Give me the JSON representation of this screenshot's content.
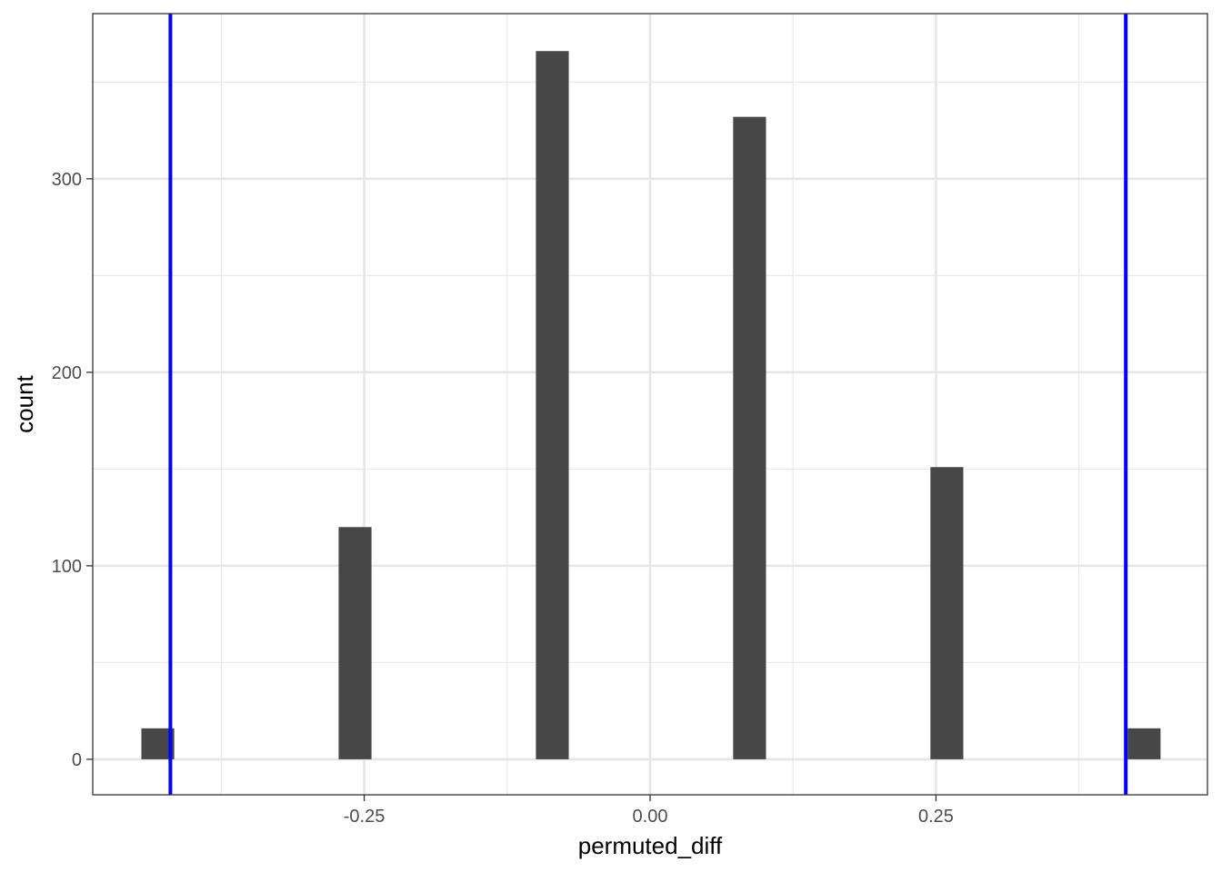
{
  "chart_data": {
    "type": "bar",
    "subtype": "histogram",
    "xlabel": "permuted_diff",
    "ylabel": "count",
    "xlim": [
      -0.4874,
      0.4874
    ],
    "ylim": [
      -18.35,
      385.35
    ],
    "x_ticks": [
      {
        "value": -0.25,
        "label": "-0.25"
      },
      {
        "value": 0.0,
        "label": "0.00"
      },
      {
        "value": 0.25,
        "label": "0.25"
      }
    ],
    "x_minor": [
      -0.375,
      -0.125,
      0.125,
      0.375
    ],
    "y_ticks": [
      {
        "value": 0,
        "label": "0"
      },
      {
        "value": 100,
        "label": "100"
      },
      {
        "value": 200,
        "label": "200"
      },
      {
        "value": 300,
        "label": "300"
      }
    ],
    "y_minor": [
      50,
      150,
      250,
      350
    ],
    "bin_width": 0.02874,
    "bins": [
      {
        "center": -0.4305,
        "count": 16
      },
      {
        "center": -0.258,
        "count": 120
      },
      {
        "center": -0.0855,
        "count": 366
      },
      {
        "center": 0.087,
        "count": 332
      },
      {
        "center": 0.2595,
        "count": 151
      },
      {
        "center": 0.432,
        "count": 16
      }
    ],
    "vlines": [
      {
        "x": -0.4195,
        "color": "#0000ff"
      },
      {
        "x": 0.416,
        "color": "#0000ff"
      }
    ],
    "bar_color": "#474747",
    "grid": true,
    "theme": "bw"
  }
}
